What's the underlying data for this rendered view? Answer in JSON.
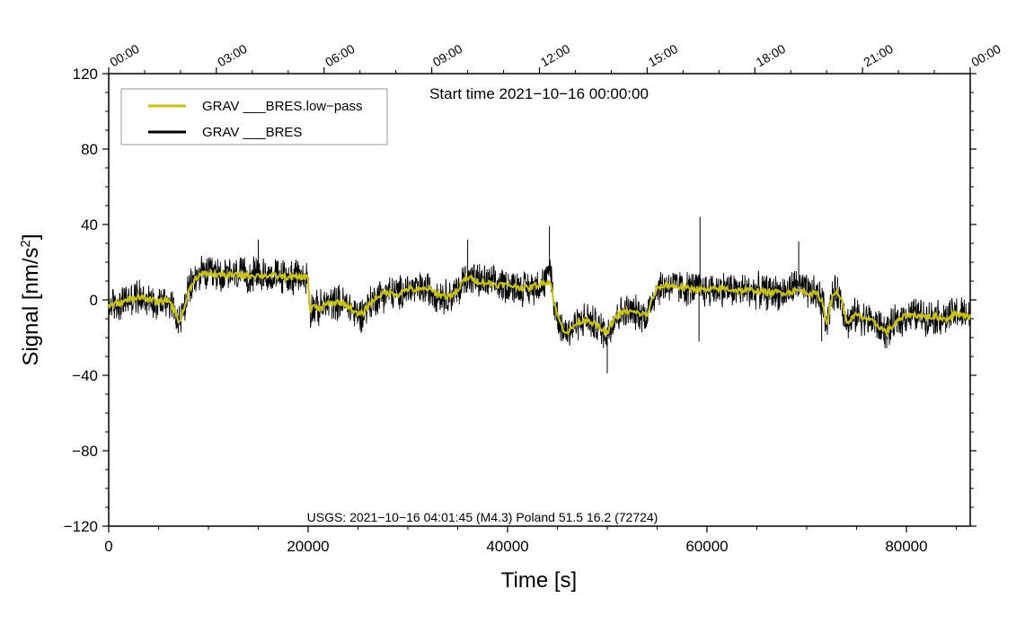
{
  "chart_data": {
    "type": "line",
    "annotations": {
      "start_time": "Start time 2021−10−16 00:00:00",
      "event": "USGS: 2021−10−16 04:01:45 (M4.3) Poland 51.5 16.2 (72724)"
    },
    "xlabel": "Time [s]",
    "ylabel_main": "Signal [nm/s",
    "ylabel_sup": "2",
    "ylabel_end": "]",
    "xlim": [
      0,
      86400
    ],
    "ylim": [
      -120,
      120
    ],
    "x_ticks": [
      0,
      20000,
      40000,
      60000,
      80000
    ],
    "x_tick_labels": [
      "0",
      "20000",
      "40000",
      "60000",
      "80000"
    ],
    "y_ticks": [
      -120,
      -80,
      -40,
      0,
      40,
      80,
      120
    ],
    "y_tick_labels": [
      "−120",
      "−80",
      "−40",
      "0",
      "40",
      "80",
      "120"
    ],
    "top_axis_ticks": [
      0,
      10800,
      21600,
      32400,
      43200,
      54000,
      64800,
      75600,
      86400
    ],
    "top_axis_labels": [
      "00:00",
      "03:00",
      "06:00",
      "09:00",
      "12:00",
      "15:00",
      "18:00",
      "21:00",
      "00:00"
    ],
    "legend": {
      "placement": "top-left",
      "entries": [
        {
          "label": "GRAV ___BRES.low−pass",
          "color": "#c8c218"
        },
        {
          "label": "GRAV ___BRES",
          "color": "#000000"
        }
      ]
    },
    "series": [
      {
        "name": "GRAV ___BRES",
        "color": "#000000",
        "noise_amplitude": 9,
        "x": [
          0,
          1000,
          2000,
          3000,
          4000,
          5000,
          6000,
          6600,
          7000,
          7500,
          8000,
          8500,
          9000,
          10000,
          12000,
          14000,
          16000,
          18000,
          19500,
          20000,
          20200,
          20400,
          21000,
          22000,
          23000,
          24000,
          25000,
          25500,
          26000,
          27000,
          28000,
          29000,
          30000,
          31000,
          32000,
          33000,
          34000,
          35000,
          35500,
          36000,
          37000,
          38000,
          39000,
          40000,
          41000,
          42000,
          43000,
          44000,
          44300,
          44600,
          45000,
          45500,
          46000,
          46500,
          47000,
          48000,
          49000,
          50000,
          50500,
          51000,
          52000,
          53000,
          54000,
          54500,
          55000,
          56000,
          57000,
          58000,
          59000,
          60000,
          61000,
          62000,
          63000,
          64000,
          65000,
          66000,
          67000,
          68000,
          69000,
          70000,
          71000,
          71500,
          72000,
          72500,
          73000,
          73500,
          74000,
          75000,
          76000,
          77000,
          78000,
          79000,
          80000,
          81000,
          82000,
          83000,
          84000,
          85000,
          86000,
          86400
        ],
        "y": [
          -3,
          -2,
          0,
          2,
          0,
          -1,
          0,
          -5,
          -12,
          -6,
          4,
          10,
          13,
          14,
          13,
          13,
          13,
          12,
          12,
          12,
          -8,
          -3,
          -5,
          -2,
          -1,
          -3,
          -8,
          -7,
          -3,
          2,
          4,
          3,
          6,
          5,
          6,
          3,
          2,
          4,
          10,
          12,
          10,
          9,
          8,
          8,
          7,
          6,
          8,
          10,
          18,
          0,
          -8,
          -15,
          -17,
          -15,
          -12,
          -10,
          -14,
          -18,
          -12,
          -8,
          -6,
          -7,
          -8,
          0,
          6,
          8,
          7,
          6,
          6,
          5,
          6,
          6,
          5,
          5,
          5,
          4,
          4,
          4,
          8,
          4,
          3,
          0,
          -12,
          0,
          5,
          0,
          -12,
          -8,
          -10,
          -13,
          -17,
          -12,
          -8,
          -8,
          -9,
          -9,
          -10,
          -7,
          -8,
          -9
        ]
      },
      {
        "name": "GRAV ___BRES.low−pass",
        "color": "#c8c218",
        "x": [
          0,
          1000,
          2000,
          3000,
          4000,
          5000,
          6000,
          6600,
          7000,
          7500,
          8000,
          8500,
          9000,
          10000,
          12000,
          14000,
          16000,
          18000,
          19500,
          20000,
          20200,
          20400,
          21000,
          22000,
          23000,
          24000,
          25000,
          25500,
          26000,
          27000,
          28000,
          29000,
          30000,
          31000,
          32000,
          33000,
          34000,
          35000,
          35500,
          36000,
          37000,
          38000,
          39000,
          40000,
          41000,
          42000,
          43000,
          44000,
          44300,
          44600,
          45000,
          45500,
          46000,
          46500,
          47000,
          48000,
          49000,
          50000,
          50500,
          51000,
          52000,
          53000,
          54000,
          54500,
          55000,
          56000,
          57000,
          58000,
          59000,
          60000,
          61000,
          62000,
          63000,
          64000,
          65000,
          66000,
          67000,
          68000,
          69000,
          70000,
          71000,
          71500,
          72000,
          72500,
          73000,
          73500,
          74000,
          75000,
          76000,
          77000,
          78000,
          79000,
          80000,
          81000,
          82000,
          83000,
          84000,
          85000,
          86000,
          86400
        ],
        "y": [
          -3,
          -2,
          0,
          2,
          0,
          -1,
          0,
          -5,
          -12,
          -6,
          4,
          10,
          13,
          14,
          13,
          13,
          13,
          12,
          12,
          12,
          -8,
          -3,
          -5,
          -2,
          -1,
          -3,
          -8,
          -7,
          -3,
          2,
          4,
          3,
          6,
          5,
          6,
          3,
          2,
          4,
          10,
          12,
          10,
          9,
          8,
          8,
          7,
          6,
          8,
          10,
          10,
          0,
          -8,
          -15,
          -17,
          -15,
          -12,
          -10,
          -14,
          -18,
          -12,
          -8,
          -6,
          -7,
          -8,
          0,
          6,
          8,
          7,
          6,
          6,
          5,
          6,
          6,
          5,
          5,
          5,
          4,
          4,
          4,
          5,
          4,
          3,
          0,
          -12,
          0,
          5,
          0,
          -12,
          -8,
          -10,
          -13,
          -17,
          -12,
          -8,
          -8,
          -9,
          -9,
          -10,
          -7,
          -8,
          -9
        ]
      }
    ]
  }
}
